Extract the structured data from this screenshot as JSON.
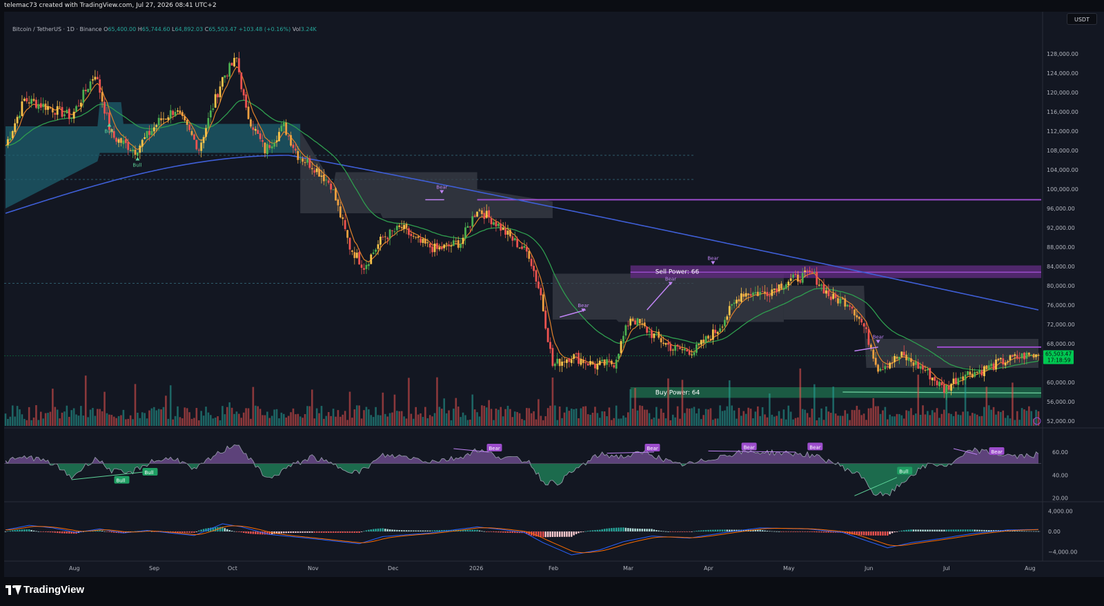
{
  "header": {
    "created_by": "telemac73 created with TradingView.com, Jul 27, 2026 08:41 UTC+2"
  },
  "legend": {
    "symbol": "Bitcoin / TetherUS · 1D · Binance",
    "o_label": "O",
    "o": "65,400.00",
    "h_label": "H",
    "h": "65,744.60",
    "l_label": "L",
    "l": "64,892.03",
    "c_label": "C",
    "c": "65,503.47",
    "change": "+103.48 (+0.16%)",
    "vol_label": "Vol",
    "vol": "3.24K"
  },
  "unit_button": "USDT",
  "price_axis": {
    "ticks": [
      "128,000.00",
      "124,000.00",
      "120,000.00",
      "116,000.00",
      "112,000.00",
      "108,000.00",
      "104,000.00",
      "100,000.00",
      "96,000.00",
      "92,000.00",
      "88,000.00",
      "84,000.00",
      "80,000.00",
      "76,000.00",
      "72,000.00",
      "68,000.00",
      "60,000.00",
      "56,000.00",
      "52,000.00"
    ],
    "last_price": "65,503.47",
    "countdown": "17:18:59"
  },
  "rsi_axis": {
    "ticks": [
      "60.00",
      "40.00",
      "20.00"
    ]
  },
  "macd_axis": {
    "ticks": [
      "4,000.00",
      "0.00",
      "−4,000.00"
    ]
  },
  "time_axis": {
    "labels": [
      "Aug",
      "Sep",
      "Oct",
      "Nov",
      "Dec",
      "2026",
      "Feb",
      "Mar",
      "Apr",
      "May",
      "Jun",
      "Jul",
      "Aug"
    ]
  },
  "zones": {
    "sell_power": "Sell Power: 66",
    "buy_power": "Buy Power: 64"
  },
  "signals": {
    "bull": "Bull",
    "bear": "Bear"
  },
  "colors": {
    "up": "#26a69a",
    "down": "#ef5350",
    "sma200": "#3f5fd8",
    "sma50": "#2f9e4f",
    "ema": "#e0802a",
    "purple": "#9c4dcc",
    "cloud_teal": "#1d5f6e",
    "cloud_grey": "#3a3d47"
  },
  "brand": {
    "name": "TradingView"
  },
  "chart_data": {
    "type": "candlestick",
    "timeframe": "1D",
    "ylim": [
      51000,
      131000
    ],
    "months": [
      "Aug",
      "Sep",
      "Oct",
      "Nov",
      "Dec",
      "2026",
      "Feb",
      "Mar",
      "Apr",
      "May",
      "Jun",
      "Jul",
      "Aug"
    ],
    "path_points": [
      [
        0,
        109000
      ],
      [
        8,
        118500
      ],
      [
        18,
        117000
      ],
      [
        28,
        115000
      ],
      [
        38,
        124000
      ],
      [
        45,
        111000
      ],
      [
        55,
        108000
      ],
      [
        65,
        114000
      ],
      [
        72,
        116500
      ],
      [
        82,
        108500
      ],
      [
        92,
        123000
      ],
      [
        98,
        127000
      ],
      [
        102,
        116000
      ],
      [
        110,
        108000
      ],
      [
        118,
        113000
      ],
      [
        124,
        107000
      ],
      [
        131,
        104500
      ],
      [
        138,
        101000
      ],
      [
        146,
        88000
      ],
      [
        152,
        84000
      ],
      [
        160,
        90000
      ],
      [
        168,
        92000
      ],
      [
        175,
        89000
      ],
      [
        183,
        87500
      ],
      [
        193,
        89000
      ],
      [
        200,
        96000
      ],
      [
        208,
        93000
      ],
      [
        214,
        90000
      ],
      [
        222,
        86500
      ],
      [
        227,
        78000
      ],
      [
        232,
        63500
      ],
      [
        240,
        65500
      ],
      [
        250,
        63500
      ],
      [
        258,
        64000
      ],
      [
        265,
        73500
      ],
      [
        274,
        70000
      ],
      [
        283,
        67000
      ],
      [
        292,
        66500
      ],
      [
        302,
        71000
      ],
      [
        312,
        78500
      ],
      [
        322,
        78500
      ],
      [
        332,
        81000
      ],
      [
        342,
        82500
      ],
      [
        350,
        77500
      ],
      [
        358,
        76500
      ],
      [
        364,
        71500
      ],
      [
        370,
        63000
      ],
      [
        380,
        65500
      ],
      [
        390,
        62500
      ],
      [
        398,
        58500
      ],
      [
        405,
        61500
      ],
      [
        414,
        62500
      ],
      [
        424,
        64500
      ],
      [
        432,
        65500
      ],
      [
        438,
        65500
      ]
    ],
    "rsi": {
      "ylim": [
        15,
        75
      ],
      "points": [
        [
          0,
          52
        ],
        [
          10,
          56
        ],
        [
          20,
          50
        ],
        [
          28,
          38
        ],
        [
          38,
          55
        ],
        [
          45,
          44
        ],
        [
          52,
          41
        ],
        [
          62,
          52
        ],
        [
          72,
          55
        ],
        [
          80,
          44
        ],
        [
          88,
          56
        ],
        [
          98,
          68
        ],
        [
          105,
          50
        ],
        [
          112,
          36
        ],
        [
          118,
          45
        ],
        [
          130,
          56
        ],
        [
          140,
          48
        ],
        [
          150,
          42
        ],
        [
          160,
          57
        ],
        [
          170,
          56
        ],
        [
          180,
          52
        ],
        [
          192,
          55
        ],
        [
          200,
          62
        ],
        [
          210,
          56
        ],
        [
          222,
          52
        ],
        [
          228,
          34
        ],
        [
          234,
          33
        ],
        [
          244,
          48
        ],
        [
          252,
          58
        ],
        [
          262,
          56
        ],
        [
          272,
          60
        ],
        [
          284,
          49
        ],
        [
          292,
          50
        ],
        [
          302,
          56
        ],
        [
          312,
          60
        ],
        [
          322,
          60
        ],
        [
          340,
          58
        ],
        [
          350,
          52
        ],
        [
          364,
          38
        ],
        [
          368,
          24
        ],
        [
          374,
          22
        ],
        [
          384,
          40
        ],
        [
          392,
          50
        ],
        [
          400,
          48
        ],
        [
          410,
          62
        ],
        [
          422,
          58
        ],
        [
          430,
          56
        ],
        [
          438,
          58
        ]
      ]
    },
    "macd": {
      "ylim": [
        -5000,
        5000
      ],
      "points": [
        [
          0,
          300
        ],
        [
          10,
          1200
        ],
        [
          20,
          700
        ],
        [
          30,
          -200
        ],
        [
          40,
          500
        ],
        [
          50,
          -300
        ],
        [
          60,
          200
        ],
        [
          80,
          -800
        ],
        [
          92,
          1500
        ],
        [
          100,
          900
        ],
        [
          112,
          -600
        ],
        [
          130,
          -1400
        ],
        [
          150,
          -2400
        ],
        [
          160,
          -1000
        ],
        [
          180,
          -300
        ],
        [
          200,
          900
        ],
        [
          210,
          400
        ],
        [
          220,
          -200
        ],
        [
          228,
          -2200
        ],
        [
          240,
          -4600
        ],
        [
          252,
          -3600
        ],
        [
          262,
          -2000
        ],
        [
          274,
          -900
        ],
        [
          290,
          -1300
        ],
        [
          305,
          -200
        ],
        [
          320,
          700
        ],
        [
          340,
          500
        ],
        [
          355,
          -200
        ],
        [
          365,
          -1800
        ],
        [
          374,
          -3200
        ],
        [
          384,
          -2200
        ],
        [
          398,
          -1300
        ],
        [
          410,
          -400
        ],
        [
          425,
          300
        ],
        [
          438,
          400
        ]
      ]
    }
  }
}
